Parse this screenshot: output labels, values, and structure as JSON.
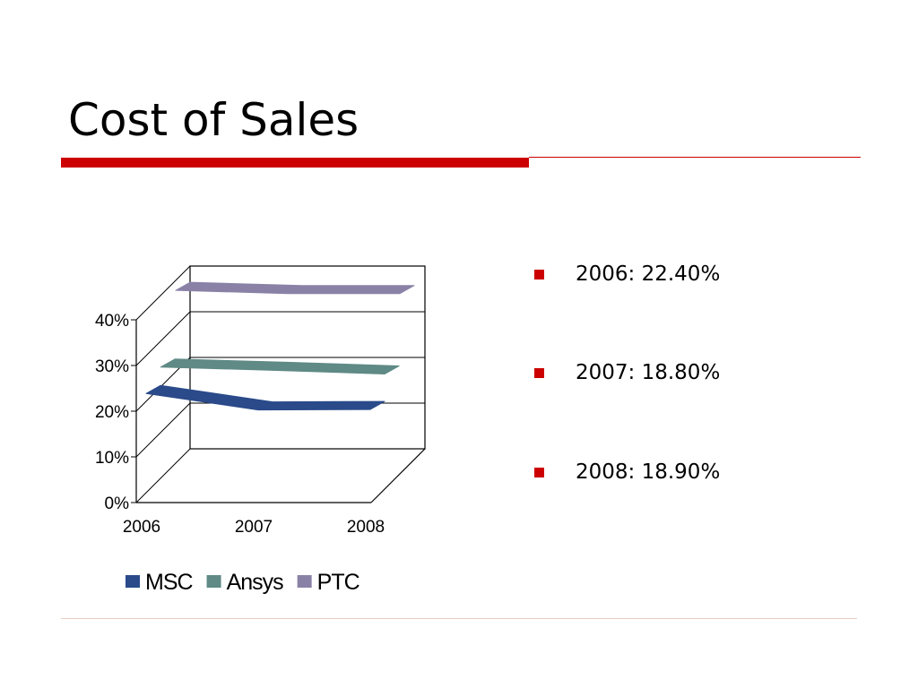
{
  "slide": {
    "title": "Cost of Sales",
    "accent_color": "#cc0000"
  },
  "bullets": [
    {
      "text": "2006: 22.40%"
    },
    {
      "text": "2007: 18.80%"
    },
    {
      "text": "2008: 18.90%"
    }
  ],
  "chart_data": {
    "type": "line",
    "style": "3d",
    "categories": [
      "2006",
      "2007",
      "2008"
    ],
    "y_ticks": [
      "0%",
      "10%",
      "20%",
      "30%",
      "40%"
    ],
    "ylim": [
      0,
      40
    ],
    "grid": true,
    "legend_position": "bottom",
    "series": [
      {
        "name": "MSC",
        "values": [
          22.4,
          18.8,
          18.9
        ],
        "color": "#2a4a8a"
      },
      {
        "name": "Ansys",
        "values": [
          25.0,
          24.3,
          23.5
        ],
        "color": "#5f8a86"
      },
      {
        "name": "PTC",
        "values": [
          38.5,
          37.8,
          37.8
        ],
        "color": "#8a82a6"
      }
    ]
  }
}
